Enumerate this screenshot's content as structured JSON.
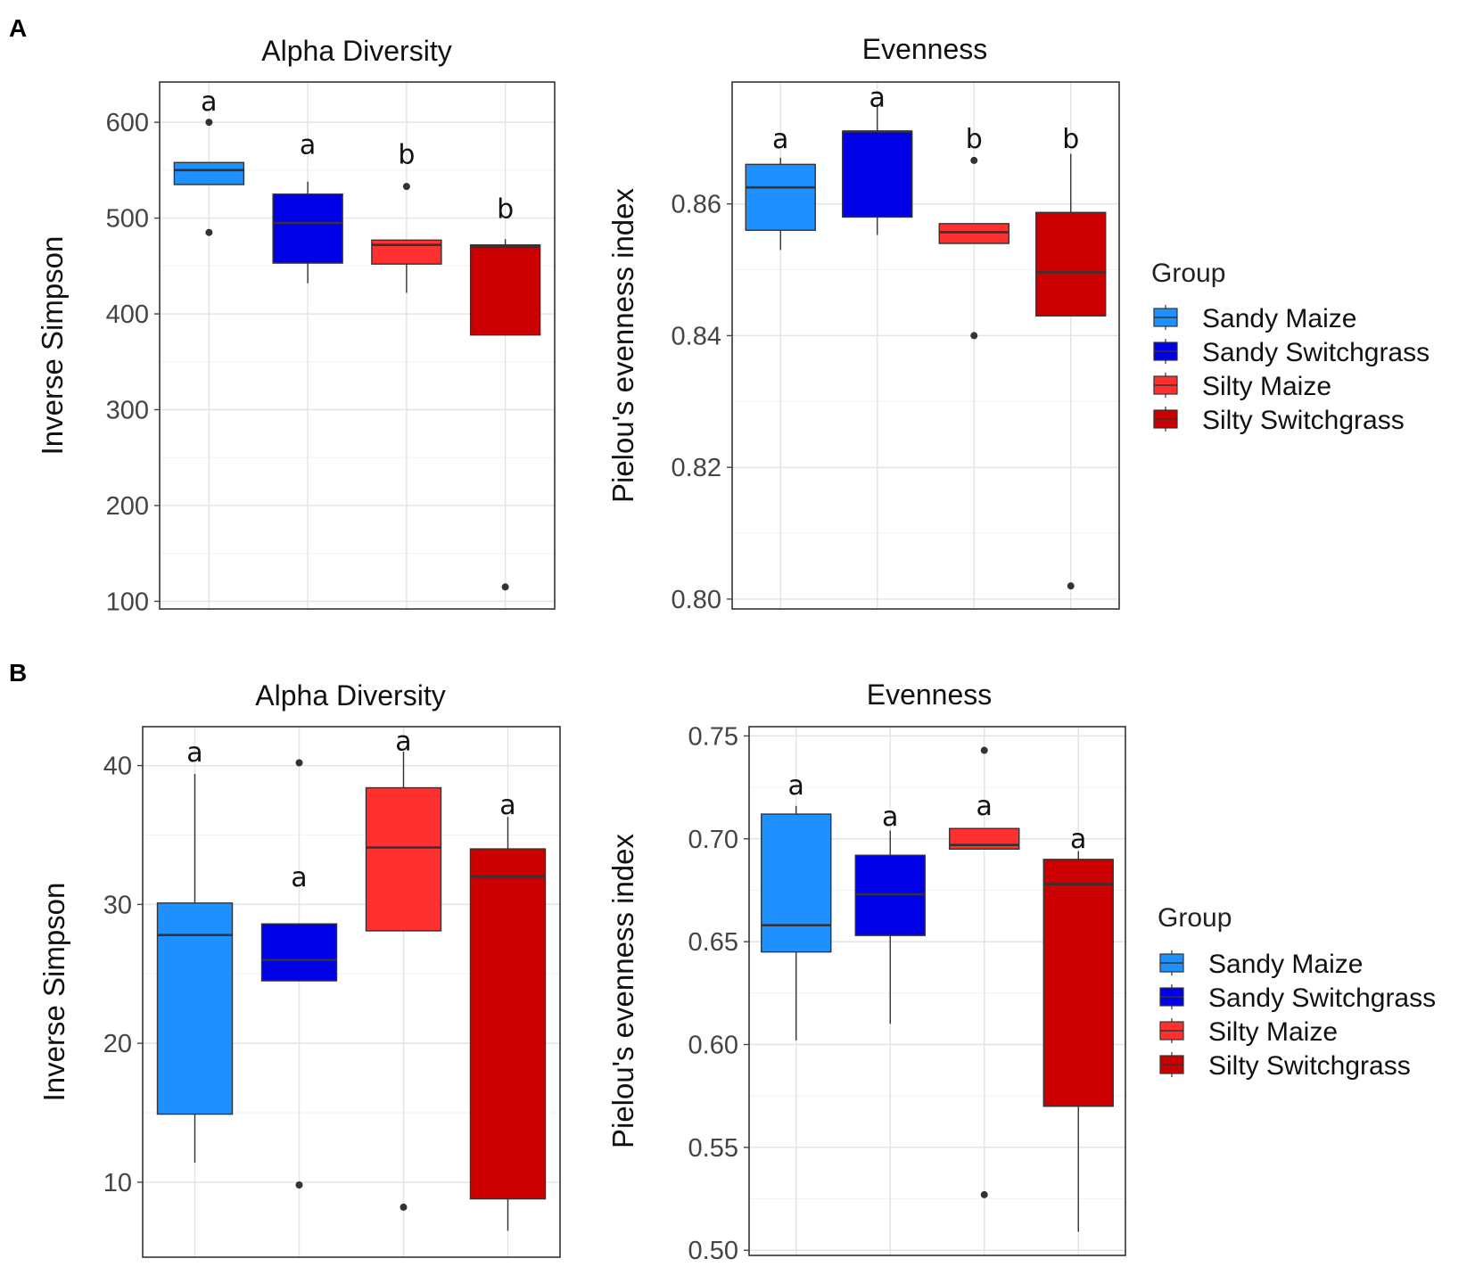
{
  "figure": {
    "panels": [
      {
        "label": "A"
      },
      {
        "label": "B"
      }
    ]
  },
  "chart_data": [
    {
      "panel": "A",
      "type": "box",
      "title": "Alpha Diversity",
      "ylabel": "Inverse Simpson",
      "ylim": [
        92,
        642
      ],
      "yticks": [
        100,
        200,
        300,
        400,
        500,
        600
      ],
      "tick_labels": [
        "100",
        "200",
        "300",
        "400",
        "500",
        "600"
      ],
      "grid": true,
      "boxes": [
        {
          "group": "Sandy Maize",
          "q1": 535,
          "median": 550,
          "q3": 558,
          "whisker_low": 535,
          "whisker_high": 558,
          "outliers": [
            600,
            485
          ],
          "letter": "a",
          "letter_y": 612
        },
        {
          "group": "Sandy Switchgrass",
          "q1": 453,
          "median": 495,
          "q3": 525,
          "whisker_low": 432,
          "whisker_high": 538,
          "outliers": [],
          "letter": "a",
          "letter_y": 567
        },
        {
          "group": "Silty Maize",
          "q1": 452,
          "median": 472,
          "q3": 477,
          "whisker_low": 422,
          "whisker_high": 477,
          "outliers": [
            533
          ],
          "letter": "b",
          "letter_y": 557
        },
        {
          "group": "Silty Switchgrass",
          "q1": 378,
          "median": 470,
          "q3": 472,
          "whisker_low": 378,
          "whisker_high": 478,
          "outliers": [
            115
          ],
          "letter": "b",
          "letter_y": 500
        }
      ]
    },
    {
      "panel": "A",
      "type": "box",
      "title": "Evenness",
      "ylabel": "Pielou's evenness index",
      "ylim": [
        0.7985,
        0.8785
      ],
      "yticks": [
        0.8,
        0.82,
        0.84,
        0.86
      ],
      "tick_labels": [
        "0.80",
        "0.82",
        "0.84",
        "0.86"
      ],
      "grid": true,
      "boxes": [
        {
          "group": "Sandy Maize",
          "q1": 0.856,
          "median": 0.8625,
          "q3": 0.866,
          "whisker_low": 0.853,
          "whisker_high": 0.867,
          "outliers": [],
          "letter": "a",
          "letter_y": 0.8685
        },
        {
          "group": "Sandy Switchgrass",
          "q1": 0.858,
          "median": 0.871,
          "q3": 0.871,
          "whisker_low": 0.8553,
          "whisker_high": 0.8751,
          "outliers": [],
          "letter": "a",
          "letter_y": 0.8748
        },
        {
          "group": "Silty Maize",
          "q1": 0.854,
          "median": 0.8557,
          "q3": 0.857,
          "whisker_low": 0.854,
          "whisker_high": 0.857,
          "outliers": [
            0.8666,
            0.84
          ],
          "letter": "b",
          "letter_y": 0.8685
        },
        {
          "group": "Silty Switchgrass",
          "q1": 0.843,
          "median": 0.8496,
          "q3": 0.8587,
          "whisker_low": 0.843,
          "whisker_high": 0.8676,
          "outliers": [
            0.802
          ],
          "letter": "b",
          "letter_y": 0.8685
        }
      ]
    },
    {
      "panel": "B",
      "type": "box",
      "title": "Alpha Diversity",
      "ylabel": "Inverse Simpson",
      "ylim": [
        4.6,
        42.8
      ],
      "yticks": [
        10,
        20,
        30,
        40
      ],
      "tick_labels": [
        "10",
        "20",
        "30",
        "40"
      ],
      "grid": true,
      "boxes": [
        {
          "group": "Sandy Maize",
          "q1": 14.9,
          "median": 27.8,
          "q3": 30.1,
          "whisker_low": 11.4,
          "whisker_high": 39.4,
          "outliers": [],
          "letter": "a",
          "letter_y": 40.3
        },
        {
          "group": "Sandy Switchgrass",
          "q1": 24.5,
          "median": 26.0,
          "q3": 28.6,
          "whisker_low": 24.5,
          "whisker_high": 28.6,
          "outliers": [
            40.2,
            9.8
          ],
          "letter": "a",
          "letter_y": 31.3
        },
        {
          "group": "Silty Maize",
          "q1": 28.1,
          "median": 34.1,
          "q3": 38.4,
          "whisker_low": 28.1,
          "whisker_high": 41.0,
          "outliers": [
            8.2
          ],
          "letter": "a",
          "letter_y": 41.1
        },
        {
          "group": "Silty Switchgrass",
          "q1": 8.8,
          "median": 32.0,
          "q3": 34.0,
          "whisker_low": 6.5,
          "whisker_high": 36.3,
          "outliers": [],
          "letter": "a",
          "letter_y": 36.5
        }
      ]
    },
    {
      "panel": "B",
      "type": "box",
      "title": "Evenness",
      "ylabel": "Pielou's evenness index",
      "ylim": [
        0.4975,
        0.7545
      ],
      "yticks": [
        0.5,
        0.55,
        0.6,
        0.65,
        0.7,
        0.75
      ],
      "tick_labels": [
        "0.50",
        "0.55",
        "0.60",
        "0.65",
        "0.70",
        "0.75"
      ],
      "grid": true,
      "boxes": [
        {
          "group": "Sandy Maize",
          "q1": 0.645,
          "median": 0.658,
          "q3": 0.712,
          "whisker_low": 0.602,
          "whisker_high": 0.716,
          "outliers": [],
          "letter": "a",
          "letter_y": 0.7215
        },
        {
          "group": "Sandy Switchgrass",
          "q1": 0.653,
          "median": 0.673,
          "q3": 0.692,
          "whisker_low": 0.61,
          "whisker_high": 0.704,
          "outliers": [],
          "letter": "a",
          "letter_y": 0.7065
        },
        {
          "group": "Silty Maize",
          "q1": 0.695,
          "median": 0.697,
          "q3": 0.705,
          "whisker_low": 0.695,
          "whisker_high": 0.705,
          "outliers": [
            0.743,
            0.527
          ],
          "letter": "a",
          "letter_y": 0.7115
        },
        {
          "group": "Silty Switchgrass",
          "q1": 0.57,
          "median": 0.678,
          "q3": 0.69,
          "whisker_low": 0.509,
          "whisker_high": 0.694,
          "outliers": [],
          "letter": "a",
          "letter_y": 0.6955
        }
      ]
    }
  ],
  "legend": {
    "title": "Group",
    "entries": [
      {
        "label": "Sandy Maize",
        "color": "#1E90FF"
      },
      {
        "label": "Sandy Switchgrass",
        "color": "#0000E6"
      },
      {
        "label": "Silty Maize",
        "color": "#FF3030"
      },
      {
        "label": "Silty Switchgrass",
        "color": "#CC0000"
      }
    ]
  }
}
